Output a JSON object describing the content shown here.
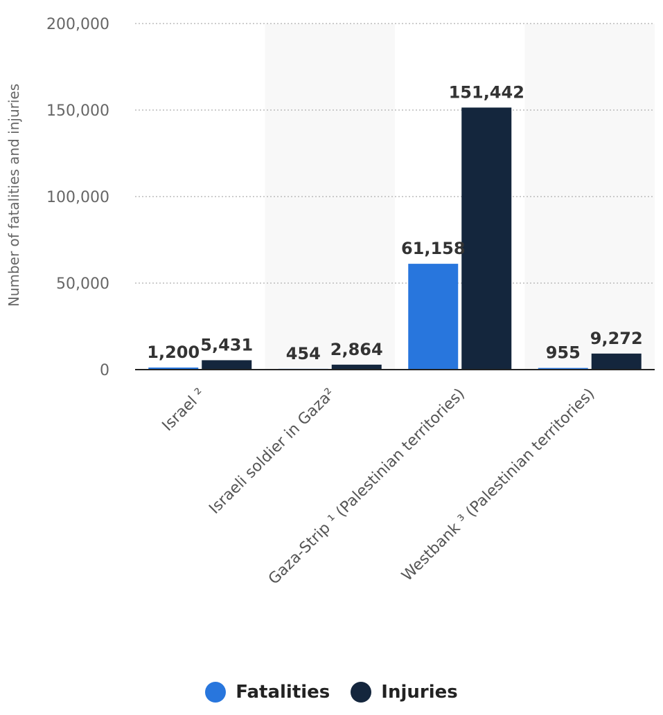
{
  "chart_data": {
    "type": "bar",
    "categories": [
      "Israel ²",
      "Israeli soldier in Gaza²",
      "Gaza-Strip ¹ (Palestinian territories)",
      "Westbank ³ (Palestinian territories)"
    ],
    "series": [
      {
        "name": "Fatalities",
        "values": [
          1200,
          454,
          61158,
          955
        ],
        "color": "#2876dd"
      },
      {
        "name": "Injuries",
        "values": [
          5431,
          2864,
          151442,
          9272
        ],
        "color": "#14263d"
      }
    ],
    "data_labels": [
      [
        "1,200",
        "454",
        "61,158",
        "955"
      ],
      [
        "5,431",
        "2,864",
        "151,442",
        "9,272"
      ]
    ],
    "ylabel": "Number of fatalities and injuries",
    "ylim": [
      0,
      200000
    ],
    "yticks": [
      0,
      50000,
      100000,
      150000,
      200000
    ],
    "ytick_labels": [
      "0",
      "50,000",
      "100,000",
      "150,000",
      "200,000"
    ],
    "grid": true,
    "legend_position": "bottom-center"
  }
}
